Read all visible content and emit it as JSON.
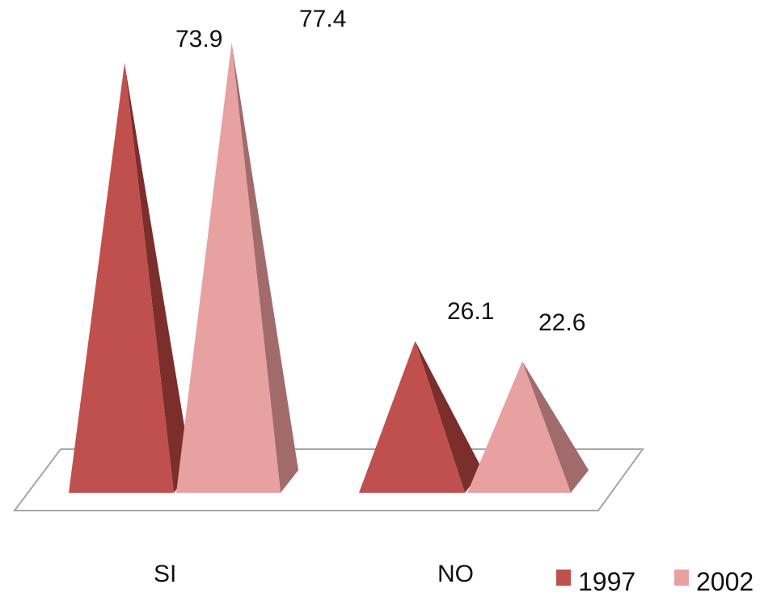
{
  "chart_data": {
    "type": "bar",
    "shape": "pyramid-3d",
    "categories": [
      "SI",
      "NO"
    ],
    "series": [
      {
        "name": "1997",
        "values": [
          73.9,
          26.1
        ],
        "color": "#c0504d",
        "shadow_color": "#7b2e2c"
      },
      {
        "name": "2002",
        "values": [
          77.4,
          22.6
        ],
        "color": "#e6a1a0",
        "shadow_color": "#a06b6a"
      }
    ],
    "data_labels": [
      {
        "series": 0,
        "category": 0,
        "text": "73.9"
      },
      {
        "series": 1,
        "category": 0,
        "text": "77.4"
      },
      {
        "series": 0,
        "category": 1,
        "text": "26.1"
      },
      {
        "series": 1,
        "category": 1,
        "text": "22.6"
      }
    ],
    "ylim": [
      0,
      80
    ],
    "grid": false,
    "legend": {
      "position": "bottom-right",
      "entries": [
        "1997",
        "2002"
      ]
    },
    "title": "",
    "xlabel": "",
    "ylabel": ""
  }
}
